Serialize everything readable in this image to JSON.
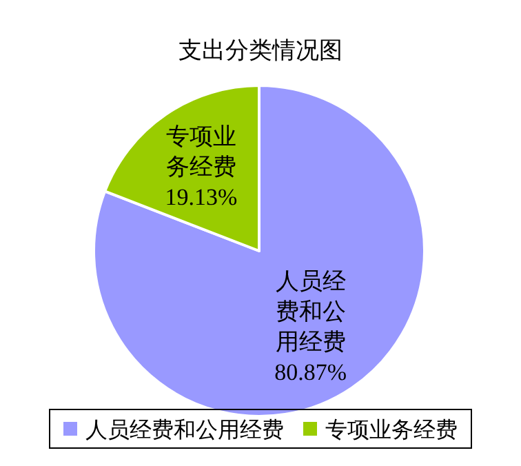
{
  "chart_data": {
    "type": "pie",
    "title": "支出分类情况图",
    "categories": [
      "人员经费和公用经费",
      "专项业务经费"
    ],
    "values": [
      80.87,
      19.13
    ],
    "colors": [
      "#9999ff",
      "#99cc00"
    ],
    "value_labels": [
      "人员经费和公用经费80.87%",
      "专项业务经费19.13%"
    ],
    "legend": "bottom"
  }
}
